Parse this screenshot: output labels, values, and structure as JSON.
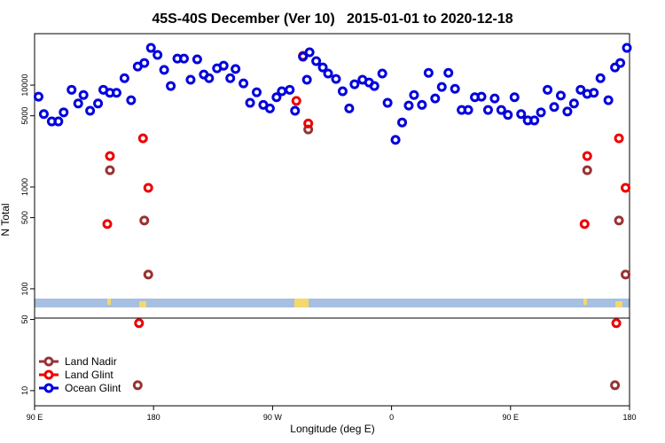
{
  "chart_data": {
    "type": "scatter",
    "title": "45S-40S December (Ver 10)   2015-01-01 to 2020-12-18",
    "xlabel": "Longitude (deg E)",
    "ylabel": "N Total",
    "log_y": true,
    "legend": "lower left",
    "xlim": [
      90,
      540
    ],
    "xticks": [
      {
        "value": 90,
        "label": "90 E"
      },
      {
        "value": 180,
        "label": "180"
      },
      {
        "value": 270,
        "label": "90 W"
      },
      {
        "value": 360,
        "label": "0"
      },
      {
        "value": 450,
        "label": "90 E"
      },
      {
        "value": 540,
        "label": "180"
      }
    ],
    "ylim": [
      7.1,
      32000
    ],
    "yticks": [
      10,
      50,
      100,
      500,
      1000,
      5000,
      10000
    ],
    "series": [
      {
        "name": "Land Nadir",
        "color": "#993333",
        "x": [
          147,
          173,
          176,
          168,
          297,
          508,
          532,
          537,
          529
        ],
        "values": [
          1460,
          468,
          138,
          11.3,
          3670,
          1460,
          468,
          138,
          11.3
        ]
      },
      {
        "name": "Land Glint",
        "color": "#ee0000",
        "x": [
          145,
          147,
          172,
          176,
          169,
          288,
          293,
          297,
          506,
          508,
          532,
          537,
          530
        ],
        "values": [
          432,
          2010,
          3000,
          980,
          46,
          7000,
          19400,
          4200,
          432,
          2010,
          3000,
          980,
          46
        ]
      },
      {
        "name": "Ocean Glint",
        "color": "#0000dd",
        "x": [
          93,
          97,
          103,
          108,
          112,
          118,
          123,
          127,
          132,
          138,
          142,
          147,
          152,
          158,
          163,
          168,
          173,
          178,
          183,
          188,
          193,
          198,
          203,
          208,
          213,
          218,
          222,
          228,
          233,
          238,
          242,
          248,
          253,
          258,
          263,
          268,
          273,
          277,
          283,
          287,
          293,
          298,
          303,
          308,
          312,
          318,
          323,
          328,
          332,
          338,
          343,
          347,
          353,
          357,
          363,
          368,
          373,
          377,
          383,
          388,
          393,
          398,
          403,
          408,
          413,
          418,
          423,
          428,
          433,
          438,
          443,
          448,
          453,
          458,
          463,
          468,
          473,
          478,
          483,
          488,
          493,
          498,
          503,
          508,
          513,
          518,
          524,
          529,
          533,
          538,
          296
        ],
        "values": [
          7700,
          5200,
          4400,
          4400,
          5400,
          9000,
          6600,
          8000,
          5600,
          6600,
          9000,
          8400,
          8400,
          11700,
          7100,
          15200,
          16500,
          23200,
          19800,
          14100,
          9800,
          18200,
          18200,
          11300,
          17900,
          12700,
          11700,
          14600,
          15500,
          11700,
          14400,
          10400,
          6700,
          8500,
          6400,
          5900,
          7600,
          8700,
          9000,
          5600,
          19000,
          21000,
          17200,
          14900,
          13000,
          11500,
          8700,
          5900,
          10200,
          11300,
          10600,
          9800,
          13000,
          6700,
          2900,
          4300,
          6300,
          8000,
          6400,
          13200,
          7400,
          9600,
          13200,
          9200,
          5700,
          5700,
          7600,
          7700,
          5700,
          7400,
          5700,
          5100,
          7600,
          5200,
          4500,
          4500,
          5400,
          9000,
          6100,
          7900,
          5500,
          6600,
          9000,
          8200,
          8400,
          11700,
          7100,
          14900,
          16500,
          23200,
          11300
        ]
      }
    ]
  }
}
